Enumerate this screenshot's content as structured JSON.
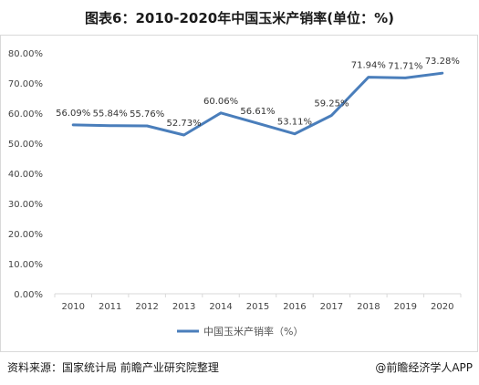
{
  "title": "图表6：2010-2020年中国玉米产销率(单位：%)",
  "footer": {
    "source": "资料来源：国家统计局 前瞻产业研究院整理",
    "brand": "@前瞻经济学人APP"
  },
  "chart_data": {
    "type": "line",
    "title": "图表6：2010-2020年中国玉米产销率(单位：%)",
    "categories": [
      "2010",
      "2011",
      "2012",
      "2013",
      "2014",
      "2015",
      "2016",
      "2017",
      "2018",
      "2019",
      "2020"
    ],
    "series": [
      {
        "name": "中国玉米产销率（%）",
        "values": [
          56.09,
          55.84,
          55.76,
          52.73,
          60.06,
          56.61,
          53.11,
          59.25,
          71.94,
          71.71,
          73.28
        ],
        "labels": [
          "56.09%",
          "55.84%",
          "55.76%",
          "52.73%",
          "60.06%",
          "56.61%",
          "53.11%",
          "59.25%",
          "71.94%",
          "71.71%",
          "73.28%"
        ]
      }
    ],
    "yticks": [
      "0.00%",
      "10.00%",
      "20.00%",
      "30.00%",
      "40.00%",
      "50.00%",
      "60.00%",
      "70.00%",
      "80.00%"
    ],
    "ylim": [
      0,
      80
    ],
    "grid": false,
    "legend_position": "bottom",
    "colors": {
      "line": "#4a7ebb",
      "axis": "#d9d9d9"
    }
  }
}
